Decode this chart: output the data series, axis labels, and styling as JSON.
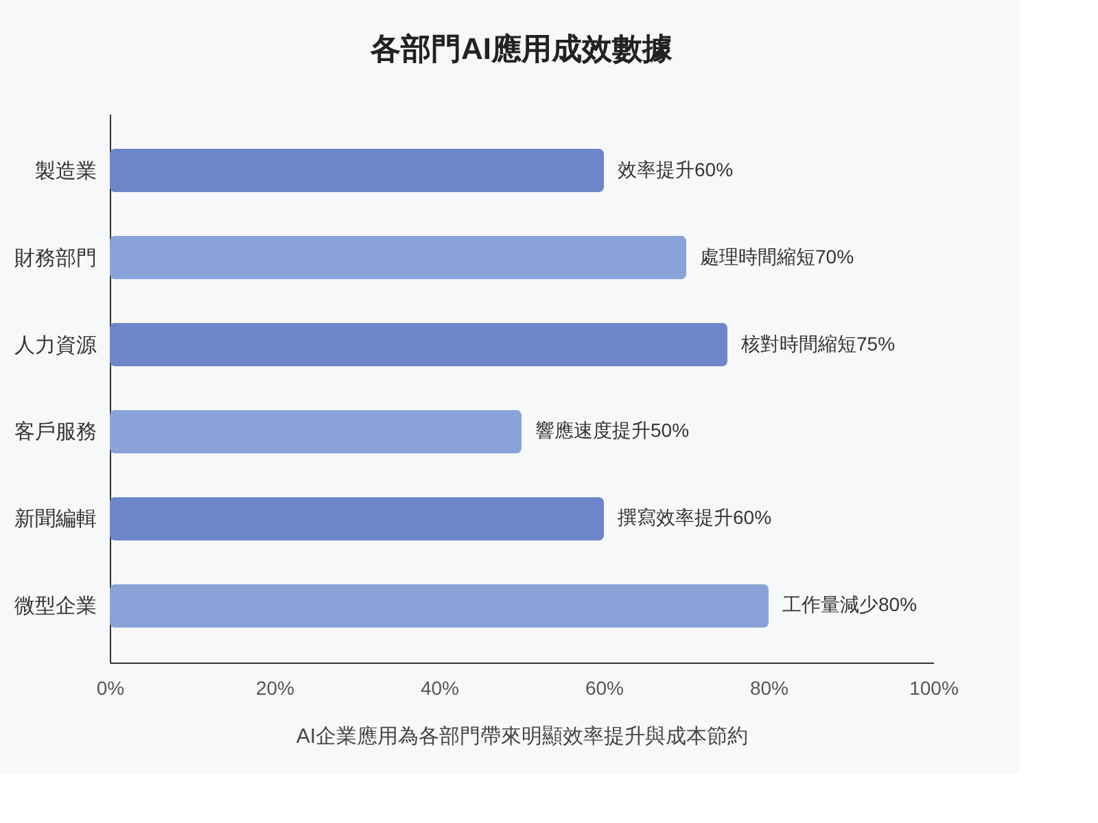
{
  "chart_data": {
    "type": "bar",
    "orientation": "horizontal",
    "title": "各部門AI應用成效數據",
    "xlabel": "AI企業應用為各部門帶來明顯效率提升與成本節約",
    "categories": [
      "製造業",
      "財務部門",
      "人力資源",
      "客戶服務",
      "新聞編輯",
      "微型企業"
    ],
    "values": [
      60,
      70,
      75,
      50,
      60,
      80
    ],
    "colors": [
      "#6c86c9",
      "#89a3d9",
      "#6c86c9",
      "#89a3d9",
      "#6c86c9",
      "#89a3d9"
    ],
    "value_labels": [
      "效率提升60%",
      "處理時間縮短70%",
      "核對時間縮短75%",
      "響應速度提升50%",
      "撰寫效率提升60%",
      "工作量減少80%"
    ],
    "xlim": [
      0,
      100
    ],
    "xticks": [
      {
        "value": 0,
        "label": "0%"
      },
      {
        "value": 20,
        "label": "20%"
      },
      {
        "value": 40,
        "label": "40%"
      },
      {
        "value": 60,
        "label": "60%"
      },
      {
        "value": 80,
        "label": "80%"
      },
      {
        "value": 100,
        "label": "100%"
      }
    ],
    "grid": false
  }
}
